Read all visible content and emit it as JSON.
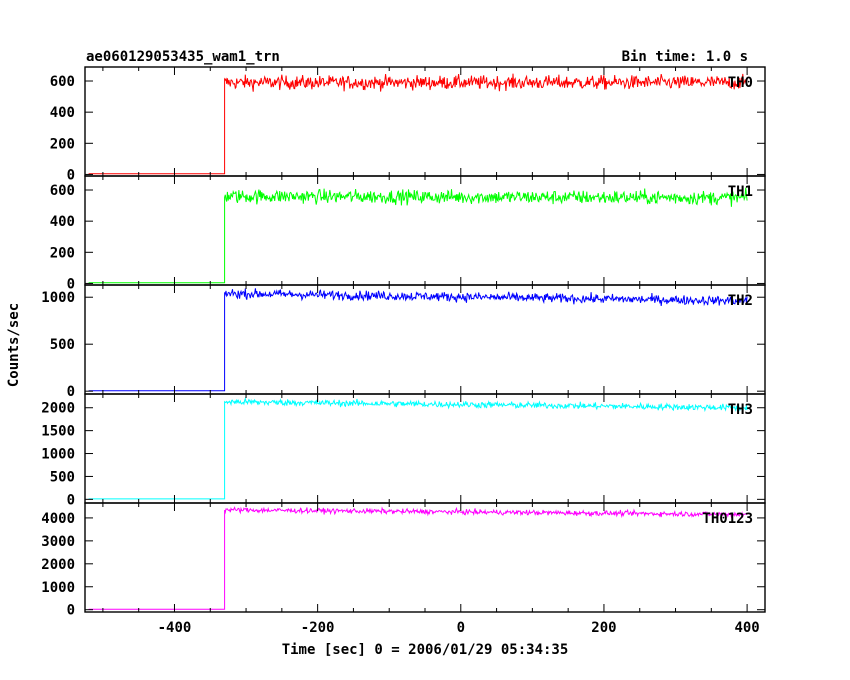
{
  "chart_data": {
    "type": "line",
    "title_left": "ae060129053435_wam1_trn",
    "title_right": "Bin time: 1.0 s",
    "xlabel": "Time [sec] 0 = 2006/01/29 05:34:35",
    "ylabel": "Counts/sec",
    "xlim": [
      -525,
      425
    ],
    "xticks": [
      -400,
      -200,
      0,
      200,
      400
    ],
    "grid": false,
    "step_time": -330,
    "trace_start": -520,
    "trace_end": 400,
    "panels": [
      {
        "name": "TH0",
        "color": "#ff0000",
        "ylim": [
          -10,
          690
        ],
        "yticks": [
          0,
          200,
          400,
          600
        ],
        "pre": 5,
        "level": 590,
        "decay": 0,
        "noise": 45
      },
      {
        "name": "TH1",
        "color": "#00ff00",
        "ylim": [
          -10,
          690
        ],
        "yticks": [
          0,
          200,
          400,
          600
        ],
        "pre": 5,
        "level": 560,
        "decay": 10,
        "noise": 45
      },
      {
        "name": "TH2",
        "color": "#0000ff",
        "ylim": [
          -30,
          1130
        ],
        "yticks": [
          0,
          500,
          1000
        ],
        "pre": 5,
        "level": 1040,
        "decay": 80,
        "noise": 50
      },
      {
        "name": "TH3",
        "color": "#00ffff",
        "ylim": [
          -80,
          2300
        ],
        "yticks": [
          0,
          500,
          1000,
          1500,
          2000
        ],
        "pre": 10,
        "level": 2130,
        "decay": 130,
        "noise": 70
      },
      {
        "name": "TH0123",
        "color": "#ff00ff",
        "ylim": [
          -100,
          4650
        ],
        "yticks": [
          0,
          1000,
          2000,
          3000,
          4000
        ],
        "pre": 20,
        "level": 4350,
        "decay": 200,
        "noise": 110
      }
    ]
  }
}
